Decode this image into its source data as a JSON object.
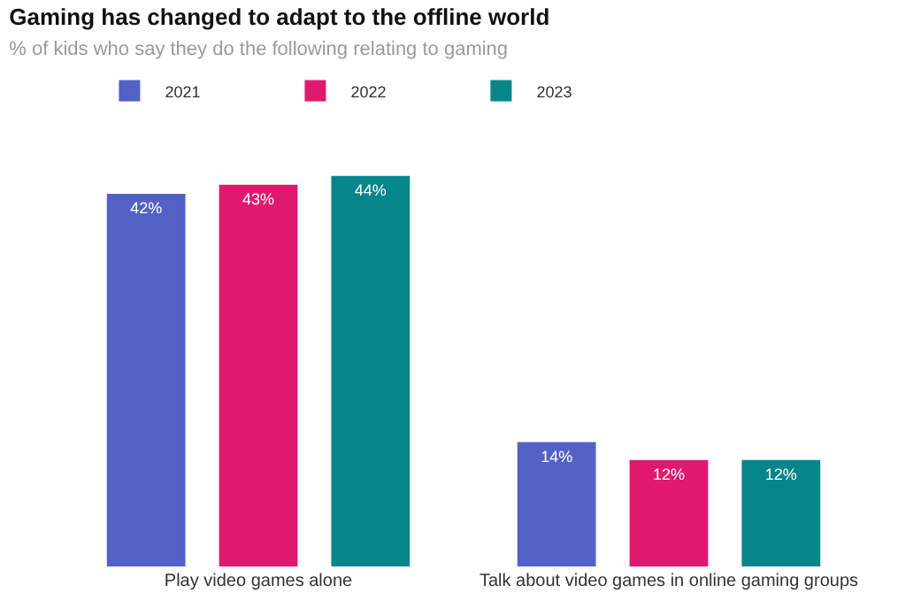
{
  "chart_data": {
    "type": "bar",
    "title": "Gaming has changed to adapt to the offline world",
    "subtitle": "% of kids who say they do the following relating to gaming",
    "categories": [
      "Play video games alone",
      "Talk about video games in online gaming groups"
    ],
    "series": [
      {
        "name": "2021",
        "color": "#5361c6",
        "values": [
          42,
          14
        ],
        "value_labels": [
          "42%",
          "14%"
        ]
      },
      {
        "name": "2022",
        "color": "#e0196e",
        "values": [
          43,
          12
        ],
        "value_labels": [
          "43%",
          "12%"
        ]
      },
      {
        "name": "2023",
        "color": "#06868a",
        "values": [
          44,
          12
        ],
        "value_labels": [
          "44%",
          "12%"
        ]
      }
    ],
    "legend": "top left"
  }
}
